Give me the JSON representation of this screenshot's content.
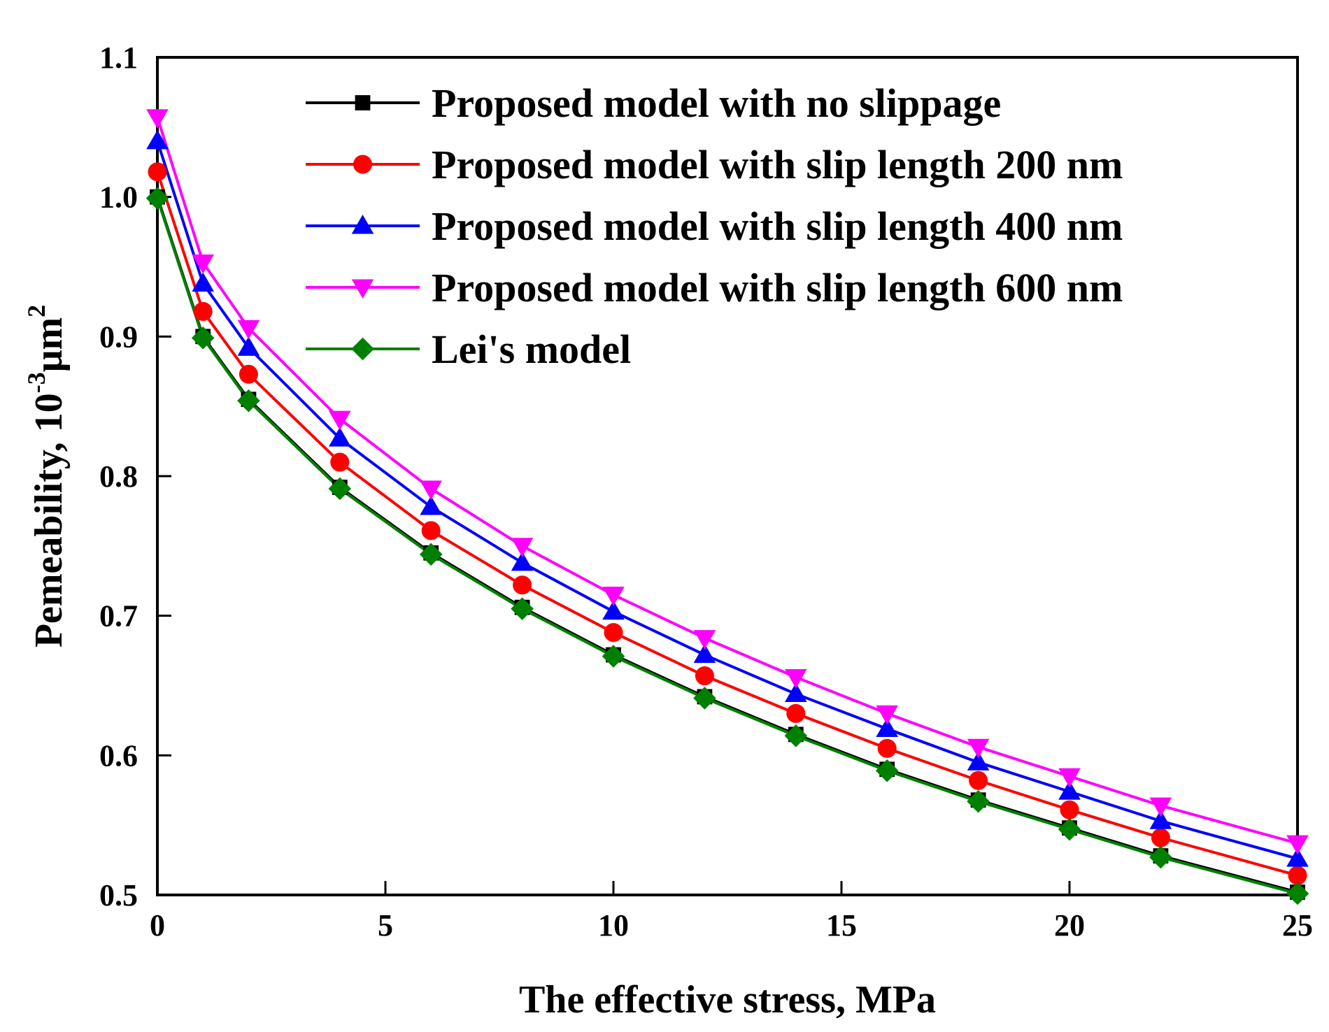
{
  "chart_data": {
    "type": "line",
    "title": "",
    "xlabel": "The effective stress, MPa",
    "ylabel": {
      "main": "Pemeability, 10",
      "exponent": "-3",
      "unit": "μm",
      "unit_exponent": "2"
    },
    "xlim": [
      0,
      25
    ],
    "ylim": [
      0.5,
      1.1
    ],
    "xticks": [
      0,
      5,
      10,
      15,
      20,
      25
    ],
    "xtick_labels": [
      "0",
      "5",
      "10",
      "15",
      "20",
      "25"
    ],
    "yticks": [
      0.5,
      0.6,
      0.7,
      0.8,
      0.9,
      1.0,
      1.1
    ],
    "ytick_labels": [
      "0.5",
      "0.6",
      "0.7",
      "0.8",
      "0.9",
      "1.0",
      "1.1"
    ],
    "grid": false,
    "legend_position": "top-right",
    "x": [
      0,
      1,
      2,
      4,
      6,
      8,
      10,
      12,
      14,
      16,
      18,
      20,
      22,
      25
    ],
    "series": [
      {
        "name": "Proposed model with no slippage",
        "color": "#000000",
        "marker": "square",
        "values": [
          1.0,
          0.9,
          0.855,
          0.792,
          0.745,
          0.706,
          0.672,
          0.642,
          0.615,
          0.59,
          0.568,
          0.548,
          0.528,
          0.502
        ]
      },
      {
        "name": "Proposed model with slip length 200 nm",
        "color": "#ff0000",
        "marker": "circle",
        "values": [
          1.018,
          0.918,
          0.873,
          0.81,
          0.761,
          0.722,
          0.688,
          0.657,
          0.63,
          0.605,
          0.582,
          0.561,
          0.541,
          0.514
        ]
      },
      {
        "name": "Proposed model with slip length 400 nm",
        "color": "#0000ff",
        "marker": "triangle-up",
        "values": [
          1.04,
          0.938,
          0.892,
          0.827,
          0.778,
          0.738,
          0.703,
          0.672,
          0.644,
          0.619,
          0.595,
          0.574,
          0.553,
          0.526
        ]
      },
      {
        "name": "Proposed model with slip length 600 nm",
        "color": "#ff00ff",
        "marker": "triangle-down",
        "values": [
          1.057,
          0.953,
          0.906,
          0.841,
          0.791,
          0.75,
          0.715,
          0.684,
          0.656,
          0.63,
          0.606,
          0.585,
          0.564,
          0.537
        ]
      },
      {
        "name": "Lei's model",
        "color": "#008000",
        "marker": "diamond",
        "values": [
          0.999,
          0.899,
          0.854,
          0.791,
          0.744,
          0.705,
          0.671,
          0.641,
          0.614,
          0.589,
          0.567,
          0.547,
          0.527,
          0.501
        ]
      }
    ]
  }
}
